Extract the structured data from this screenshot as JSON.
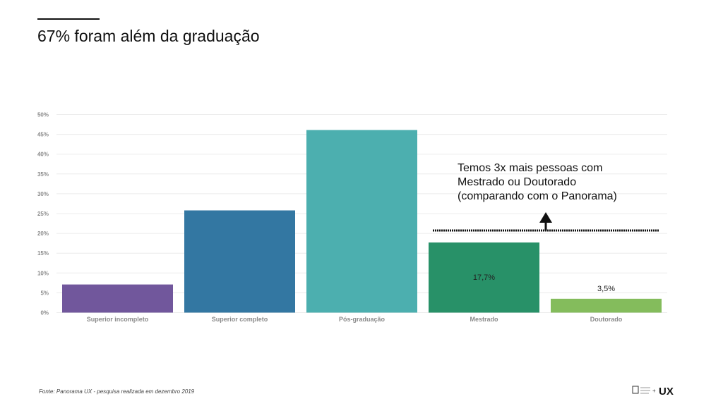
{
  "page": {
    "title": "67% foram além da graduação",
    "annotation_lines": [
      "Temos 3x mais pessoas com",
      "Mestrado ou Doutorado",
      "(comparando com o Panorama)"
    ],
    "source": "Fonte: Panorama UX - pesquisa realizada em dezembro 2019",
    "logo_text": "UX"
  },
  "chart_data": {
    "type": "bar",
    "title": "67% foram além da graduação",
    "xlabel": "",
    "ylabel": "",
    "ylim": [
      0,
      50
    ],
    "grid": true,
    "yticks": [
      "0%",
      "5%",
      "10%",
      "15%",
      "20%",
      "25%",
      "30%",
      "35%",
      "40%",
      "45%",
      "50%"
    ],
    "categories": [
      "Superior incompleto",
      "Superior completo",
      "Pós-graduação",
      "Mestrado",
      "Doutorado"
    ],
    "values": [
      7.1,
      25.8,
      46.1,
      17.7,
      3.5
    ],
    "data_labels": [
      "",
      "",
      "",
      "17,7%",
      "3,5%"
    ],
    "colors": [
      "#71579c",
      "#3377a2",
      "#4cafaf",
      "#289168",
      "#84bc5c"
    ]
  }
}
